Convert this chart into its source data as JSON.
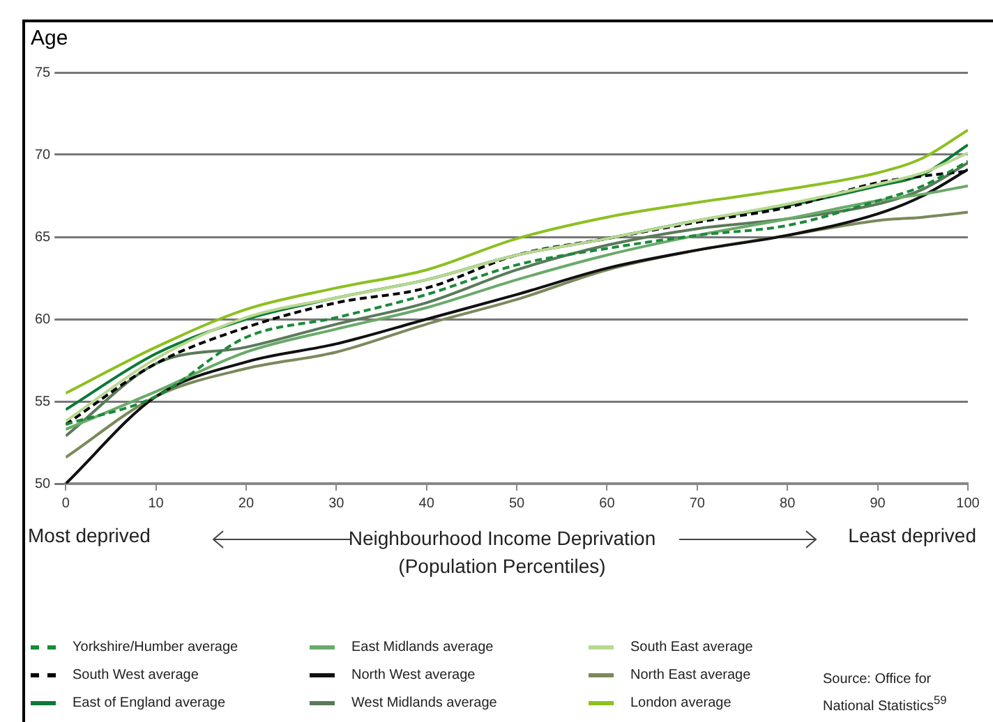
{
  "chart_data": {
    "type": "line",
    "ylabel": "Age",
    "xlabel": "Neighbourhood Income Deprivation\n(Population Percentiles)",
    "annotations": [
      "Most deprived",
      "Least deprived",
      "Source: Office for National Statistics$^{59}$"
    ],
    "x": [
      0,
      10,
      20,
      30,
      40,
      50,
      60,
      70,
      80,
      90,
      95,
      100
    ],
    "xlim": [
      0,
      100
    ],
    "xticks": [
      0,
      10,
      20,
      30,
      40,
      50,
      60,
      70,
      80,
      90,
      100
    ],
    "ylim": [
      50,
      75
    ],
    "yticks": [
      50,
      55,
      60,
      65,
      70,
      75
    ],
    "grid": "y",
    "legend": "bottom",
    "marker": "none",
    "series": [
      {
        "name": "Yorkshire/Humber average",
        "color": "#1a8a3a",
        "line_style": "dashed",
        "values": [
          53.6,
          55.3,
          58.9,
          60.1,
          61.5,
          63.3,
          64.3,
          65.1,
          65.7,
          67.2,
          68.1,
          69.6
        ]
      },
      {
        "name": "East Midlands average",
        "color": "#6aaa6a",
        "values": [
          53.3,
          55.6,
          58.0,
          59.4,
          60.7,
          62.4,
          63.9,
          65.1,
          66.1,
          67.2,
          67.6,
          68.1
        ]
      },
      {
        "name": "South East average",
        "color": "#b8d890",
        "values": [
          53.8,
          57.6,
          60.1,
          61.3,
          62.4,
          63.9,
          64.9,
          66.0,
          67.0,
          68.2,
          68.9,
          70.1
        ]
      },
      {
        "name": "South West average",
        "color": "#000000",
        "line_style": "dashed",
        "values": [
          53.6,
          57.3,
          59.5,
          61.0,
          61.9,
          63.9,
          64.9,
          65.9,
          66.8,
          68.3,
          68.7,
          69.0
        ]
      },
      {
        "name": "North West average",
        "color": "#111111",
        "values": [
          50.0,
          55.3,
          57.4,
          58.5,
          60.0,
          61.5,
          63.1,
          64.2,
          65.1,
          66.4,
          67.5,
          69.1
        ]
      },
      {
        "name": "North East average",
        "color": "#7a8a5a",
        "values": [
          51.6,
          55.3,
          57.0,
          58.0,
          59.7,
          61.2,
          63.0,
          64.2,
          65.1,
          66.0,
          66.2,
          66.5
        ]
      },
      {
        "name": "East of England average",
        "color": "#0a7a35",
        "values": [
          54.5,
          57.9,
          60.0,
          61.3,
          62.4,
          63.9,
          64.9,
          66.0,
          66.9,
          68.1,
          68.8,
          70.6
        ]
      },
      {
        "name": "West Midlands average",
        "color": "#5a7a5a",
        "values": [
          52.9,
          57.3,
          58.3,
          59.7,
          61.0,
          63.0,
          64.5,
          65.5,
          66.1,
          67.0,
          67.9,
          69.5
        ]
      },
      {
        "name": "London average",
        "color": "#8cc020",
        "values": [
          55.5,
          58.3,
          60.6,
          61.9,
          63.0,
          64.9,
          66.2,
          67.1,
          67.9,
          68.9,
          69.8,
          71.5
        ]
      }
    ]
  }
}
